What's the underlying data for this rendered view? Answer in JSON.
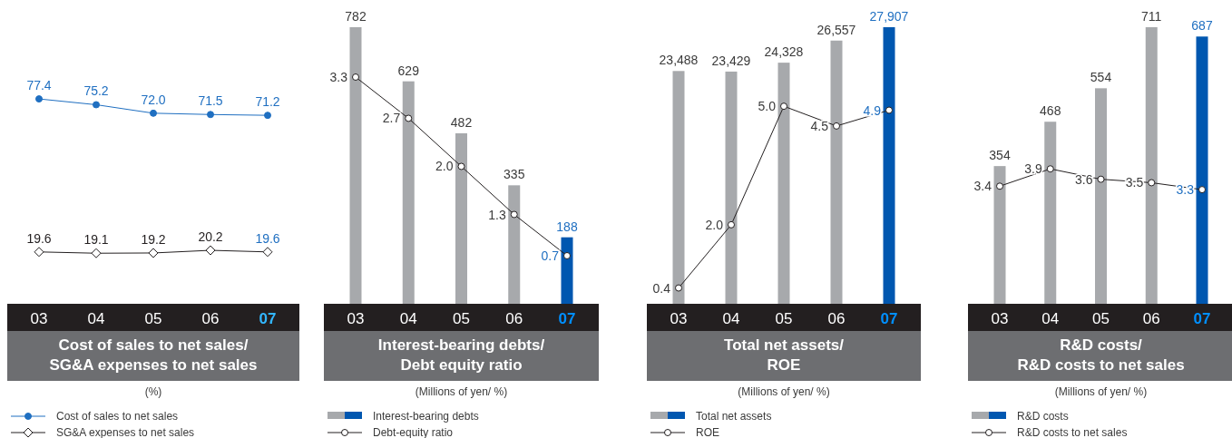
{
  "chart_data": [
    {
      "type": "line",
      "title": "Cost of sales to net sales/\nSG&A expenses to net sales",
      "subtitle": "(%)",
      "categories": [
        "03",
        "04",
        "05",
        "06",
        "07"
      ],
      "data_labels": true,
      "legend": "bottom",
      "series": [
        {
          "name": "Cost of sales to net sales",
          "color": "#1f6fc1",
          "colors": [
            "#1f6fc1",
            "#1f6fc1",
            "#1f6fc1",
            "#1f6fc1",
            "#1f6fc1"
          ],
          "marker": "circle",
          "value_labels": [
            "77.4",
            "75.2",
            "72.0",
            "71.5",
            "71.2"
          ],
          "values": [
            77.4,
            75.2,
            72.0,
            71.5,
            71.2
          ]
        },
        {
          "name": "SG&A expenses to net sales",
          "color": "#231f20",
          "colors": [
            "#231f20",
            "#231f20",
            "#231f20",
            "#231f20",
            "#1f6fc1"
          ],
          "marker": "diamond",
          "values": [
            19.6,
            19.1,
            19.2,
            20.2,
            19.6
          ]
        }
      ]
    },
    {
      "type": "bar",
      "title": "Interest-bearing debts/\nDebt equity ratio",
      "subtitle": "(Millions of yen/ %)",
      "categories": [
        "03",
        "04",
        "05",
        "06",
        "07"
      ],
      "data_labels": true,
      "legend": "bottom",
      "series": [
        {
          "name": "Interest-bearing debts",
          "color": "#a7a9ac",
          "colors": [
            "#a7a9ac",
            "#a7a9ac",
            "#a7a9ac",
            "#a7a9ac",
            "#0057b0"
          ],
          "values": [
            782,
            629,
            482,
            335,
            188
          ]
        },
        {
          "name": "Debt-equity ratio",
          "type": "line",
          "axis": "y2",
          "color": "#231f20",
          "colors": [
            "#231f20",
            "#231f20",
            "#231f20",
            "#231f20",
            "#1f6fc1"
          ],
          "marker": "circle",
          "value_labels": [
            "3.3",
            "2.7",
            "2.0",
            "1.3",
            "0.7"
          ],
          "values": [
            3.3,
            2.7,
            2.0,
            1.3,
            0.7
          ]
        }
      ]
    },
    {
      "type": "bar",
      "title": "Total net assets/\nROE",
      "subtitle": "(Millions of yen/ %)",
      "categories": [
        "03",
        "04",
        "05",
        "06",
        "07"
      ],
      "data_labels": true,
      "legend": "bottom",
      "series": [
        {
          "name": "Total net assets",
          "color": "#a7a9ac",
          "colors": [
            "#a7a9ac",
            "#a7a9ac",
            "#a7a9ac",
            "#a7a9ac",
            "#0057b0"
          ],
          "value_labels": [
            "23,488",
            "23,429",
            "24,328",
            "26,557",
            "27,907"
          ],
          "values": [
            23488,
            23429,
            24328,
            26557,
            27907
          ]
        },
        {
          "name": "ROE",
          "type": "line",
          "axis": "y2",
          "color": "#231f20",
          "colors": [
            "#231f20",
            "#231f20",
            "#231f20",
            "#231f20",
            "#1f6fc1"
          ],
          "marker": "circle",
          "value_labels": [
            "0.4",
            "2.0",
            "5.0",
            "4.5",
            "4.9"
          ],
          "values": [
            0.4,
            2.0,
            5.0,
            4.5,
            4.9
          ]
        }
      ]
    },
    {
      "type": "bar",
      "title": "R&D costs/\nR&D costs to net sales",
      "subtitle": "(Millions of yen/ %)",
      "categories": [
        "03",
        "04",
        "05",
        "06",
        "07"
      ],
      "data_labels": true,
      "legend": "bottom",
      "series": [
        {
          "name": "R&D costs",
          "color": "#a7a9ac",
          "colors": [
            "#a7a9ac",
            "#a7a9ac",
            "#a7a9ac",
            "#a7a9ac",
            "#0057b0"
          ],
          "values": [
            354,
            468,
            554,
            711,
            687
          ]
        },
        {
          "name": "R&D costs to net sales",
          "type": "line",
          "axis": "y2",
          "color": "#231f20",
          "colors": [
            "#231f20",
            "#231f20",
            "#231f20",
            "#231f20",
            "#1f6fc1"
          ],
          "marker": "circle",
          "values": [
            3.4,
            3.9,
            3.6,
            3.5,
            3.3
          ]
        }
      ]
    }
  ]
}
